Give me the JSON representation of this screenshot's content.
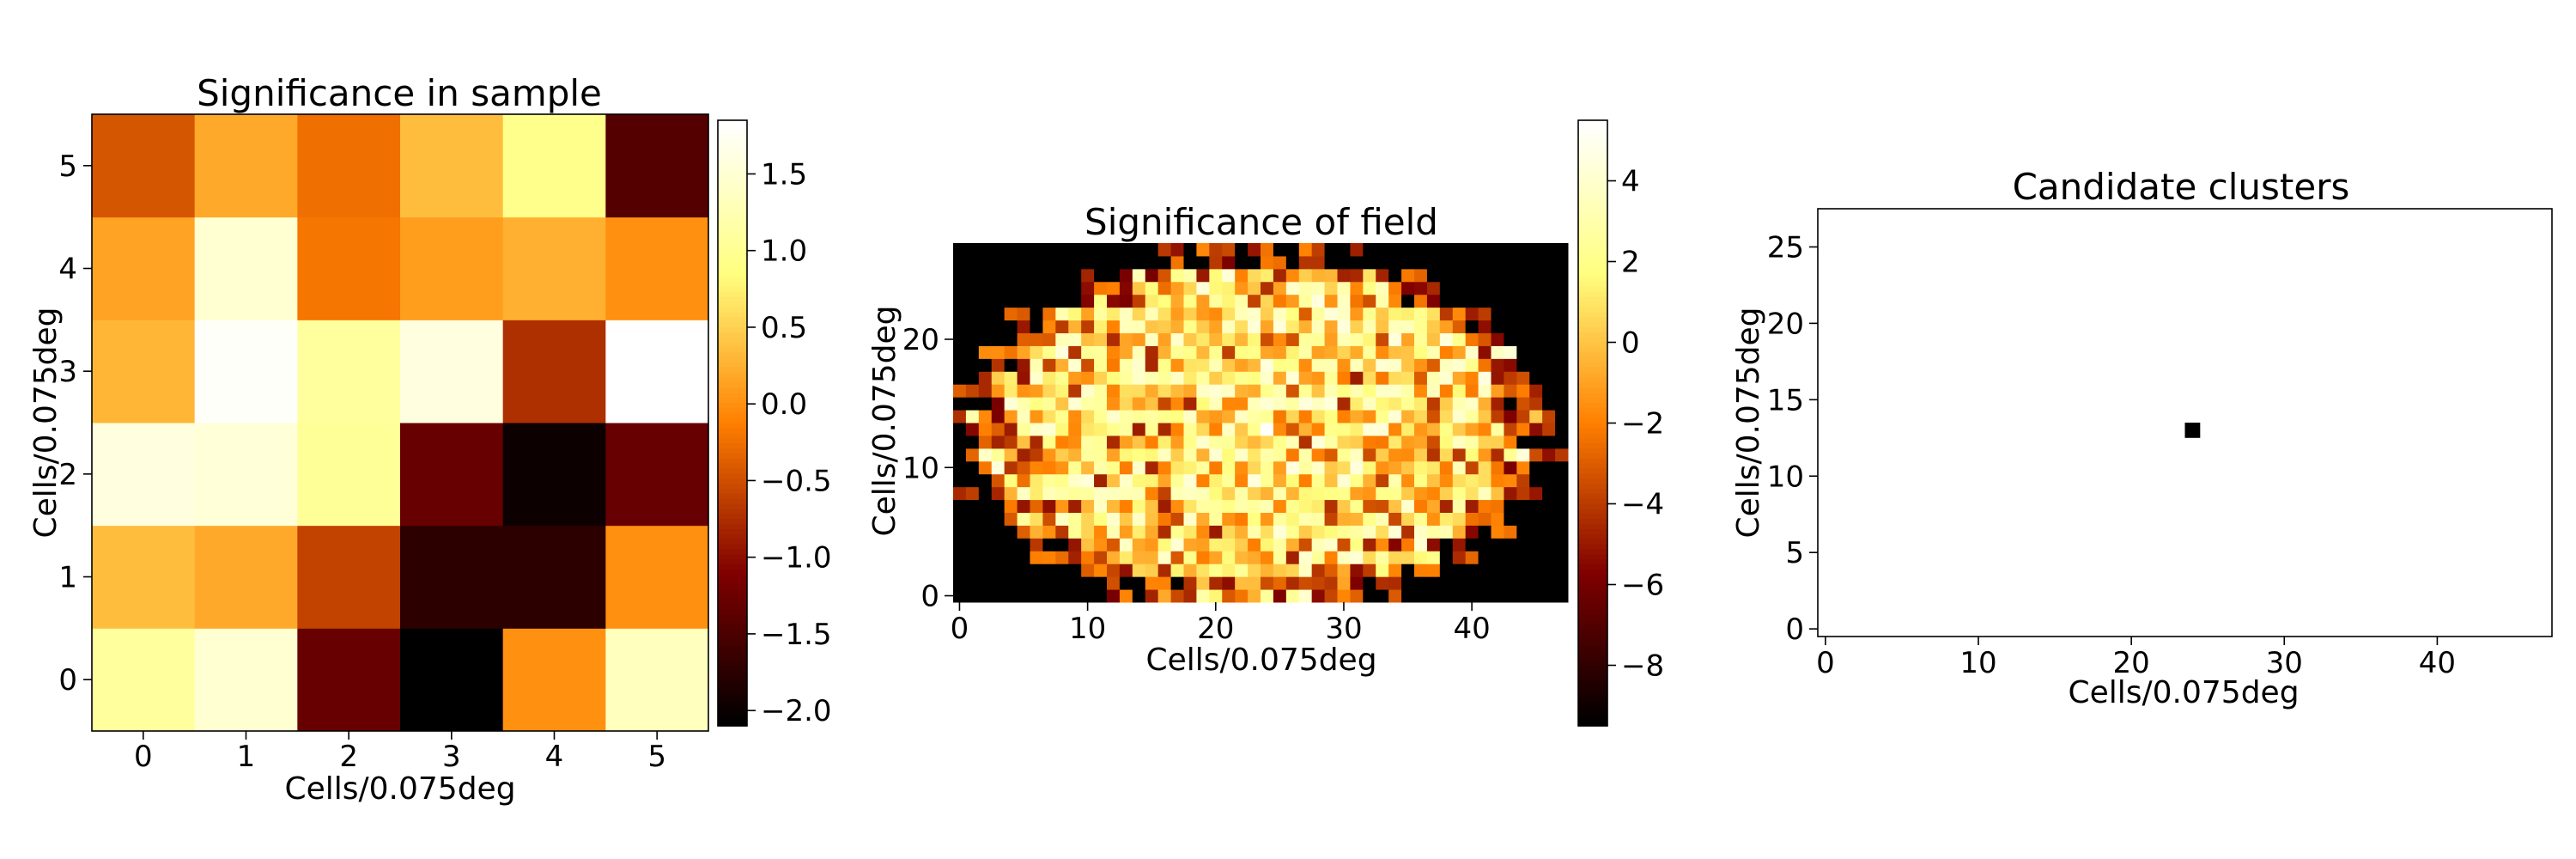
{
  "chart_data": [
    {
      "type": "heatmap",
      "title": "Significance in sample",
      "xlabel": "Cells/0.075deg",
      "ylabel": "Cells/0.075deg",
      "x_ticks": [
        "0",
        "1",
        "2",
        "3",
        "4",
        "5"
      ],
      "y_ticks": [
        "0",
        "1",
        "2",
        "3",
        "4",
        "5"
      ],
      "colormap": "afmhot",
      "vmin": -2.1,
      "vmax": 1.85,
      "colorbar_ticks": [
        1.5,
        1.0,
        0.5,
        0.0,
        -0.5,
        -1.0,
        -1.5,
        -2.0
      ],
      "colorbar_tick_labels": [
        "1.5",
        "1.0",
        "0.5",
        "0.0",
        "−0.5",
        "−1.0",
        "−1.5",
        "−2.0"
      ],
      "values_row0_at_bottom": [
        [
          1.1,
          1.5,
          -1.3,
          -2.1,
          0.0,
          1.35
        ],
        [
          0.35,
          0.2,
          -0.6,
          -1.75,
          -1.75,
          0.0
        ],
        [
          1.6,
          1.55,
          1.05,
          -1.3,
          -2.0,
          -1.3
        ],
        [
          0.3,
          1.8,
          1.1,
          1.6,
          -0.75,
          1.85
        ],
        [
          0.15,
          1.5,
          -0.2,
          0.1,
          0.25,
          0.0
        ],
        [
          -0.45,
          0.2,
          -0.25,
          0.35,
          0.95,
          -1.45
        ]
      ]
    },
    {
      "type": "heatmap",
      "title": "Significance of field",
      "xlabel": "Cells/0.075deg",
      "ylabel": "Cells/0.075deg",
      "x_ticks": [
        "0",
        "10",
        "20",
        "30",
        "40"
      ],
      "y_ticks": [
        "0",
        "10",
        "20"
      ],
      "grid_size": [
        48,
        28
      ],
      "colormap": "afmhot",
      "vmin": -9.5,
      "vmax": 5.5,
      "colorbar_ticks": [
        4,
        2,
        0,
        -2,
        -4,
        -6,
        -8
      ],
      "colorbar_tick_labels": [
        "4",
        "2",
        "0",
        "−2",
        "−4",
        "−6",
        "−8"
      ],
      "field_shape": "irregular ellipse centered near (24, 13); surrounding cells at minimum",
      "field_value_range": [
        -6,
        5.5
      ],
      "highlight_cell": {
        "x": 24,
        "y": 13,
        "value": 5.5
      }
    },
    {
      "type": "scatter",
      "title": "Candidate clusters",
      "xlabel": "Cells/0.075deg",
      "ylabel": "Cells/0.075deg",
      "x_ticks": [
        "0",
        "10",
        "20",
        "30",
        "40"
      ],
      "y_ticks": [
        "0",
        "5",
        "10",
        "15",
        "20",
        "25"
      ],
      "xlim": [
        -0.5,
        47.5
      ],
      "ylim": [
        -0.5,
        27.5
      ],
      "points": [
        {
          "x": 24,
          "y": 13
        }
      ],
      "marker": "square",
      "marker_color": "#000000"
    }
  ]
}
